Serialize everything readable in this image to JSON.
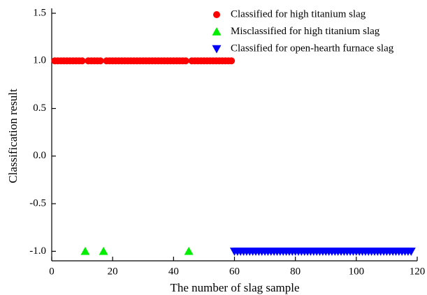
{
  "chart_data": {
    "type": "scatter",
    "xlabel": "The number of slag sample",
    "ylabel": "Classification result",
    "xlim": [
      0,
      120
    ],
    "ylim": [
      -1.1,
      1.5
    ],
    "xticks": [
      0,
      20,
      40,
      60,
      80,
      100,
      120
    ],
    "yticks": [
      {
        "value": -1,
        "label": "-1.0"
      },
      -0.5,
      {
        "value": 0,
        "label": "0.0"
      },
      0.5,
      {
        "value": 1,
        "label": "1.0"
      },
      1.5
    ],
    "legend": "top-right",
    "series": [
      {
        "name": "Classified for high titanium slag",
        "color": "#ff0000",
        "marker": "circle",
        "x": [
          1,
          2,
          3,
          4,
          5,
          6,
          7,
          8,
          9,
          10,
          12,
          13,
          14,
          15,
          16,
          18,
          19,
          20,
          21,
          22,
          23,
          24,
          25,
          26,
          27,
          28,
          29,
          30,
          31,
          32,
          33,
          34,
          35,
          36,
          37,
          38,
          39,
          40,
          41,
          42,
          43,
          44,
          46,
          47,
          48,
          49,
          50,
          51,
          52,
          53,
          54,
          55,
          56,
          57,
          58,
          59
        ],
        "values": [
          1,
          1,
          1,
          1,
          1,
          1,
          1,
          1,
          1,
          1,
          1,
          1,
          1,
          1,
          1,
          1,
          1,
          1,
          1,
          1,
          1,
          1,
          1,
          1,
          1,
          1,
          1,
          1,
          1,
          1,
          1,
          1,
          1,
          1,
          1,
          1,
          1,
          1,
          1,
          1,
          1,
          1,
          1,
          1,
          1,
          1,
          1,
          1,
          1,
          1,
          1,
          1,
          1,
          1,
          1,
          1
        ]
      },
      {
        "name": "Misclassified for high titanium slag",
        "color": "#00ee00",
        "marker": "triangle-up",
        "x": [
          11,
          17,
          45
        ],
        "values": [
          -1,
          -1,
          -1
        ]
      },
      {
        "name": "Classified for open-hearth furnace slag",
        "color": "#0000ff",
        "marker": "triangle-down",
        "x": [
          60,
          61,
          62,
          63,
          64,
          65,
          66,
          67,
          68,
          69,
          70,
          71,
          72,
          73,
          74,
          75,
          76,
          77,
          78,
          79,
          80,
          81,
          82,
          83,
          84,
          85,
          86,
          87,
          88,
          89,
          90,
          91,
          92,
          93,
          94,
          95,
          96,
          97,
          98,
          99,
          100,
          101,
          102,
          103,
          104,
          105,
          106,
          107,
          108,
          109,
          110,
          111,
          112,
          113,
          114,
          115,
          116,
          117,
          118
        ],
        "values": [
          -1,
          -1,
          -1,
          -1,
          -1,
          -1,
          -1,
          -1,
          -1,
          -1,
          -1,
          -1,
          -1,
          -1,
          -1,
          -1,
          -1,
          -1,
          -1,
          -1,
          -1,
          -1,
          -1,
          -1,
          -1,
          -1,
          -1,
          -1,
          -1,
          -1,
          -1,
          -1,
          -1,
          -1,
          -1,
          -1,
          -1,
          -1,
          -1,
          -1,
          -1,
          -1,
          -1,
          -1,
          -1,
          -1,
          -1,
          -1,
          -1,
          -1,
          -1,
          -1,
          -1,
          -1,
          -1,
          -1,
          -1,
          -1,
          -1
        ]
      }
    ]
  }
}
